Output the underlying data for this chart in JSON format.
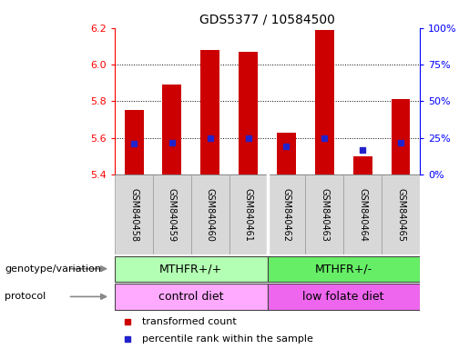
{
  "title": "GDS5377 / 10584500",
  "samples": [
    "GSM840458",
    "GSM840459",
    "GSM840460",
    "GSM840461",
    "GSM840462",
    "GSM840463",
    "GSM840464",
    "GSM840465"
  ],
  "red_values": [
    5.75,
    5.89,
    6.08,
    6.07,
    5.63,
    6.19,
    5.5,
    5.81
  ],
  "blue_values_left": [
    5.57,
    5.575,
    5.6,
    5.6,
    5.555,
    5.6,
    5.535,
    5.575
  ],
  "ymin": 5.4,
  "ymax": 6.2,
  "yticks": [
    5.4,
    5.6,
    5.8,
    6.0,
    6.2
  ],
  "right_yticks_pct": [
    0,
    25,
    50,
    75,
    100
  ],
  "bar_color": "#cc0000",
  "blue_color": "#2222cc",
  "bar_width": 0.5,
  "genotype_group1_label": "MTHFR+/+",
  "genotype_group2_label": "MTHFR+/-",
  "genotype_color1": "#b3ffb3",
  "genotype_color2": "#66ee66",
  "protocol_group1_label": "control diet",
  "protocol_group2_label": "low folate diet",
  "protocol_color1": "#ffaaff",
  "protocol_color2": "#ee66ee",
  "legend_red": "transformed count",
  "legend_blue": "percentile rank within the sample",
  "xlab_bg": "#d8d8d8",
  "plot_bg": "#ffffff",
  "title_fontsize": 10,
  "tick_fontsize": 8,
  "sample_fontsize": 7,
  "group_fontsize": 9,
  "legend_fontsize": 8,
  "label_fontsize": 8,
  "grid_ticks": [
    5.6,
    5.8,
    6.0
  ]
}
